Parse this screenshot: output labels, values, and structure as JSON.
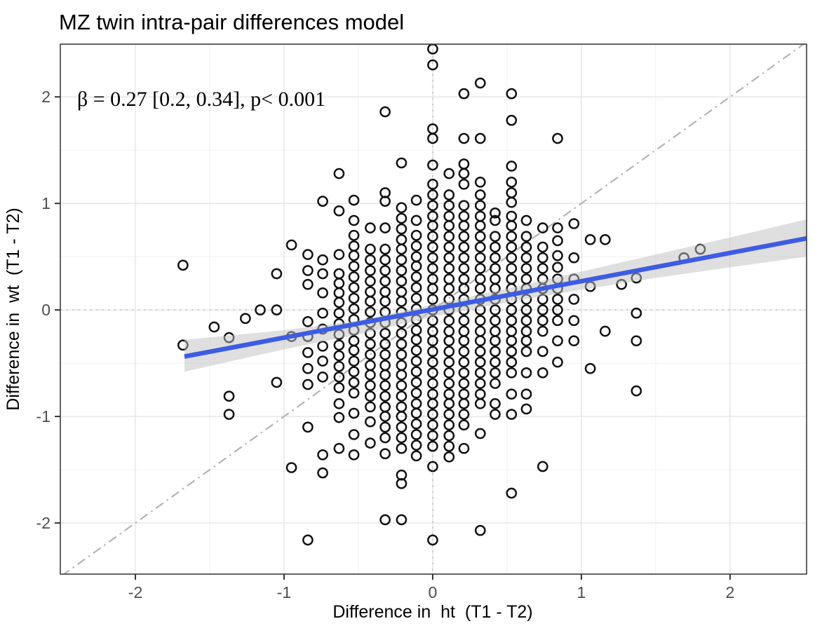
{
  "chart_data": {
    "type": "scatter",
    "title": "MZ twin intra-pair differences model",
    "annotation": "β = 0.27 [0.2, 0.34], p< 0.001",
    "xlabel": "Difference in  ht  (T1 - T2)",
    "ylabel": "Difference in  wt  (T1 - T2)",
    "xlim": [
      -2.505,
      2.515
    ],
    "ylim": [
      -2.48,
      2.495
    ],
    "xticks": [
      -2,
      -1,
      0,
      1,
      2
    ],
    "yticks": [
      -2,
      -1,
      0,
      1,
      2
    ],
    "xticklabels": [
      "-2",
      "-1",
      "0",
      "1",
      "2"
    ],
    "yticklabels": [
      "-2",
      "-1",
      "0",
      "1",
      "2"
    ],
    "minor_xticks": [
      -2.5,
      -1.5,
      -0.5,
      0.5,
      1.5,
      2.5
    ],
    "minor_yticks": [
      -1.5,
      -0.5,
      0.5,
      1.5
    ],
    "grid": true,
    "legend": false,
    "reference_lines": {
      "horizontal_zero": 0,
      "vertical_zero": 0,
      "identity": "y = x dash-dot"
    },
    "regression": {
      "beta": 0.27,
      "ci_low": 0.2,
      "ci_high": 0.34,
      "p": "< 0.001",
      "slope": 0.265,
      "intercept": 0.005,
      "x_start": -1.67,
      "x_end": 2.515
    },
    "confidence_band": [
      {
        "x": -1.67,
        "lo": -0.58,
        "hi": -0.28
      },
      {
        "x": -1.0,
        "lo": -0.37,
        "hi": -0.19
      },
      {
        "x": -0.5,
        "lo": -0.23,
        "hi": -0.1
      },
      {
        "x": 0.0,
        "lo": -0.065,
        "hi": 0.05
      },
      {
        "x": 0.5,
        "lo": 0.07,
        "hi": 0.2
      },
      {
        "x": 1.0,
        "lo": 0.19,
        "hi": 0.36
      },
      {
        "x": 1.5,
        "lo": 0.3,
        "hi": 0.52
      },
      {
        "x": 2.0,
        "lo": 0.4,
        "hi": 0.68
      },
      {
        "x": 2.515,
        "lo": 0.5,
        "hi": 0.85
      }
    ],
    "columns": [
      {
        "x": -1.68,
        "ys": [
          0.42,
          -0.33
        ]
      },
      {
        "x": -1.47,
        "ys": [
          -0.16
        ]
      },
      {
        "x": -1.37,
        "ys": [
          -0.26,
          -0.81,
          -0.98
        ]
      },
      {
        "x": -1.26,
        "ys": [
          -0.08
        ]
      },
      {
        "x": -1.16,
        "ys": [
          0.0
        ]
      },
      {
        "x": -1.05,
        "ys": [
          0.34,
          0.0,
          -0.68
        ]
      },
      {
        "x": -0.95,
        "ys": [
          0.61,
          -0.25,
          -1.48
        ]
      },
      {
        "x": -0.84,
        "ys": [
          0.52,
          0.37,
          0.24,
          -0.11,
          -0.25,
          -0.4,
          -0.55,
          -0.7,
          -1.1,
          -2.16
        ]
      },
      {
        "x": -0.74,
        "ys": [
          1.02,
          0.47,
          0.34,
          0.16,
          -0.03,
          -0.18,
          -0.34,
          -0.48,
          -0.63,
          -1.36,
          -1.53
        ]
      },
      {
        "x": -0.63,
        "ys": [
          1.28,
          0.93,
          0.52,
          0.34,
          0.25,
          0.16,
          0.07,
          -0.03,
          -0.13,
          -0.23,
          -0.33,
          -0.43,
          -0.53,
          -0.63,
          -0.73,
          -0.88,
          -1.01,
          -1.3
        ]
      },
      {
        "x": -0.53,
        "ys": [
          1.03,
          0.84,
          0.7,
          0.6,
          0.51,
          0.41,
          0.31,
          0.21,
          0.11,
          0.01,
          -0.09,
          -0.19,
          -0.29,
          -0.38,
          -0.48,
          -0.58,
          -0.68,
          -0.78,
          -0.97,
          -1.17,
          -1.36
        ]
      },
      {
        "x": -0.42,
        "ys": [
          0.77,
          0.57,
          0.47,
          0.37,
          0.27,
          0.17,
          0.08,
          -0.02,
          -0.12,
          -0.22,
          -0.32,
          -0.42,
          -0.52,
          -0.61,
          -0.71,
          -0.81,
          -0.91,
          -1.05,
          -1.25
        ]
      },
      {
        "x": -0.32,
        "ys": [
          1.86,
          1.1,
          1.02,
          0.77,
          0.57,
          0.47,
          0.37,
          0.27,
          0.17,
          0.08,
          -0.02,
          -0.12,
          -0.22,
          -0.32,
          -0.42,
          -0.52,
          -0.61,
          -0.71,
          -0.81,
          -0.91,
          -1.0,
          -1.1,
          -1.2,
          -1.35,
          -1.97
        ]
      },
      {
        "x": -0.21,
        "ys": [
          1.38,
          0.96,
          0.86,
          0.76,
          0.66,
          0.57,
          0.47,
          0.37,
          0.27,
          0.17,
          0.08,
          -0.02,
          -0.12,
          -0.22,
          -0.32,
          -0.42,
          -0.52,
          -0.61,
          -0.71,
          -0.81,
          -0.91,
          -1.0,
          -1.1,
          -1.2,
          -1.3,
          -1.55,
          -1.63,
          -1.97
        ]
      },
      {
        "x": -0.11,
        "ys": [
          1.03,
          0.84,
          0.7,
          0.6,
          0.5,
          0.41,
          0.31,
          0.21,
          0.11,
          0.01,
          -0.09,
          -0.19,
          -0.28,
          -0.38,
          -0.48,
          -0.58,
          -0.68,
          -0.78,
          -0.88,
          -0.97,
          -1.07,
          -1.17,
          -1.27,
          -1.37
        ]
      },
      {
        "x": 0.0,
        "ys": [
          2.45,
          2.3,
          1.7,
          1.61,
          1.36,
          1.18,
          1.08,
          0.98,
          0.88,
          0.79,
          0.69,
          0.59,
          0.49,
          0.39,
          0.29,
          0.2,
          0.1,
          0.0,
          -0.1,
          -0.2,
          -0.29,
          -0.39,
          -0.49,
          -0.59,
          -0.69,
          -0.79,
          -0.88,
          -0.98,
          -1.08,
          -1.18,
          -1.28,
          -1.47,
          -2.16
        ]
      },
      {
        "x": 0.11,
        "ys": [
          1.28,
          1.08,
          0.98,
          0.88,
          0.79,
          0.69,
          0.59,
          0.49,
          0.39,
          0.29,
          0.2,
          0.1,
          0.0,
          -0.1,
          -0.2,
          -0.29,
          -0.39,
          -0.49,
          -0.59,
          -0.69,
          -0.79,
          -0.88,
          -0.98,
          -1.08,
          -1.18,
          -1.28,
          -1.38
        ]
      },
      {
        "x": 0.21,
        "ys": [
          2.03,
          1.61,
          1.37,
          1.28,
          1.18,
          0.98,
          0.88,
          0.79,
          0.69,
          0.59,
          0.49,
          0.39,
          0.29,
          0.2,
          0.1,
          0.0,
          -0.1,
          -0.2,
          -0.29,
          -0.39,
          -0.49,
          -0.59,
          -0.69,
          -0.79,
          -0.88,
          -0.98,
          -1.08,
          -1.3
        ]
      },
      {
        "x": 0.32,
        "ys": [
          2.13,
          1.61,
          1.2,
          1.08,
          0.98,
          0.88,
          0.79,
          0.69,
          0.59,
          0.49,
          0.39,
          0.29,
          0.2,
          0.1,
          0.0,
          -0.1,
          -0.2,
          -0.29,
          -0.39,
          -0.49,
          -0.59,
          -0.69,
          -0.79,
          -0.88,
          -1.16,
          -2.07
        ]
      },
      {
        "x": 0.42,
        "ys": [
          0.91,
          0.84,
          0.69,
          0.59,
          0.49,
          0.39,
          0.29,
          0.2,
          0.1,
          0.0,
          -0.1,
          -0.2,
          -0.29,
          -0.39,
          -0.49,
          -0.59,
          -0.69,
          -0.88,
          -0.98
        ]
      },
      {
        "x": 0.53,
        "ys": [
          2.03,
          1.78,
          1.35,
          1.2,
          1.1,
          1.01,
          0.88,
          0.79,
          0.69,
          0.59,
          0.49,
          0.39,
          0.29,
          0.2,
          0.1,
          0.0,
          -0.1,
          -0.2,
          -0.29,
          -0.39,
          -0.49,
          -0.59,
          -0.79,
          -0.98,
          -1.72
        ]
      },
      {
        "x": 0.63,
        "ys": [
          0.84,
          0.69,
          0.59,
          0.49,
          0.39,
          0.29,
          0.2,
          0.1,
          0.0,
          -0.1,
          -0.2,
          -0.29,
          -0.39,
          -0.59,
          -0.79,
          -0.93
        ]
      },
      {
        "x": 0.74,
        "ys": [
          0.77,
          0.59,
          0.49,
          0.39,
          0.29,
          0.2,
          0.1,
          0.0,
          -0.1,
          -0.2,
          -0.39,
          -0.59,
          -1.47
        ]
      },
      {
        "x": 0.84,
        "ys": [
          1.61,
          0.77,
          0.65,
          0.51,
          0.4,
          0.29,
          0.2,
          0.1,
          0.0,
          -0.1,
          -0.29,
          -0.49
        ]
      },
      {
        "x": 0.95,
        "ys": [
          0.81,
          0.49,
          0.29,
          0.1,
          -0.1,
          -0.29
        ]
      },
      {
        "x": 1.06,
        "ys": [
          0.66,
          0.22,
          -0.55
        ]
      },
      {
        "x": 1.16,
        "ys": [
          0.66,
          -0.2
        ]
      },
      {
        "x": 1.27,
        "ys": [
          0.24
        ]
      },
      {
        "x": 1.37,
        "ys": [
          0.3,
          -0.03,
          -0.29,
          -0.76
        ]
      },
      {
        "x": 1.69,
        "ys": [
          0.49
        ]
      },
      {
        "x": 1.8,
        "ys": [
          0.57
        ]
      }
    ],
    "colors": {
      "smooth_line": "#3d5ce5",
      "confidence_band": "#bfbfbf",
      "point_stroke": "#111111",
      "grid_major": "#e3e3e3",
      "grid_minor": "#f0f0f0",
      "zero_dotted": "#cccccc",
      "identity_line": "#b4b4b4",
      "panel_border": "#3c3c3c",
      "tick_mark": "#333333",
      "tick_label": "#4d4d4d",
      "text": "#000000",
      "panel_bg": "#ffffff"
    }
  }
}
